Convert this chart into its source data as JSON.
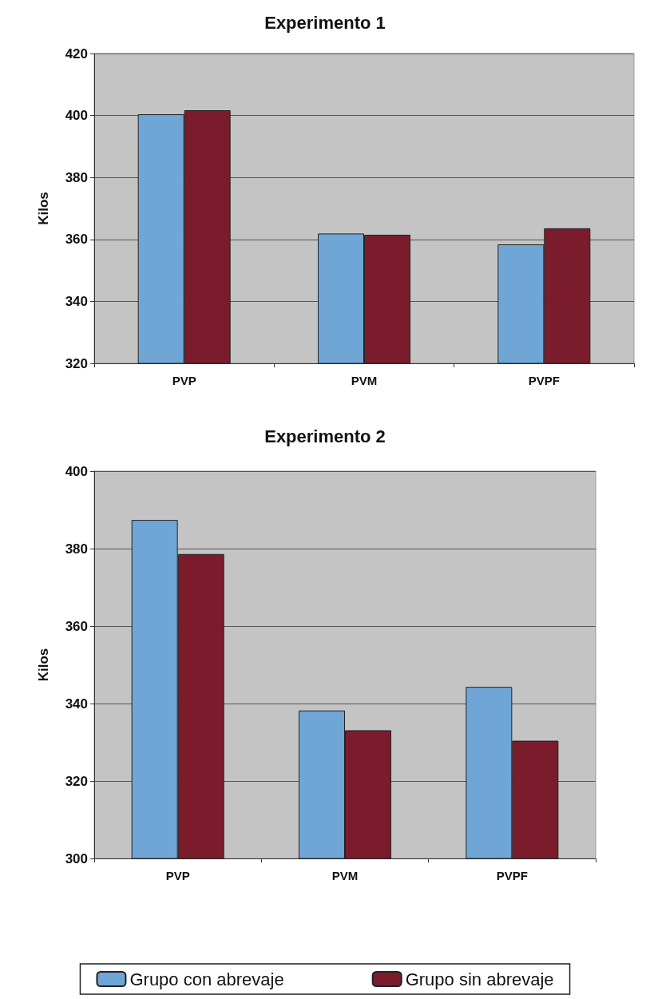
{
  "chart_data": [
    {
      "type": "bar",
      "title": "Experimento 1",
      "ylabel": "Kilos",
      "categories": [
        "PVP",
        "PVM",
        "PVPF"
      ],
      "series": [
        {
          "color": "#6fa6d6",
          "values": [
            400.4,
            361.9,
            358.4
          ]
        },
        {
          "color": "#7a1c2c",
          "values": [
            401.7,
            361.5,
            363.6
          ]
        }
      ],
      "ylim": [
        320,
        420
      ],
      "yticks": [
        320,
        340,
        360,
        380,
        400,
        420
      ],
      "grid": "y",
      "legend": false
    },
    {
      "type": "bar",
      "title": "Experimento 2",
      "ylabel": "Kilos",
      "categories": [
        "PVP",
        "PVM",
        "PVPF"
      ],
      "series": [
        {
          "name": "Grupo con abrevaje",
          "color": "#6fa6d6",
          "values": [
            387.4,
            338.2,
            344.3
          ]
        },
        {
          "name": "Grupo sin abrevaje",
          "color": "#7a1c2c",
          "values": [
            378.6,
            333.1,
            330.4
          ]
        }
      ],
      "ylim": [
        300,
        400
      ],
      "yticks": [
        300,
        320,
        340,
        360,
        380,
        400
      ],
      "grid": "y",
      "legend": "bottom"
    }
  ]
}
